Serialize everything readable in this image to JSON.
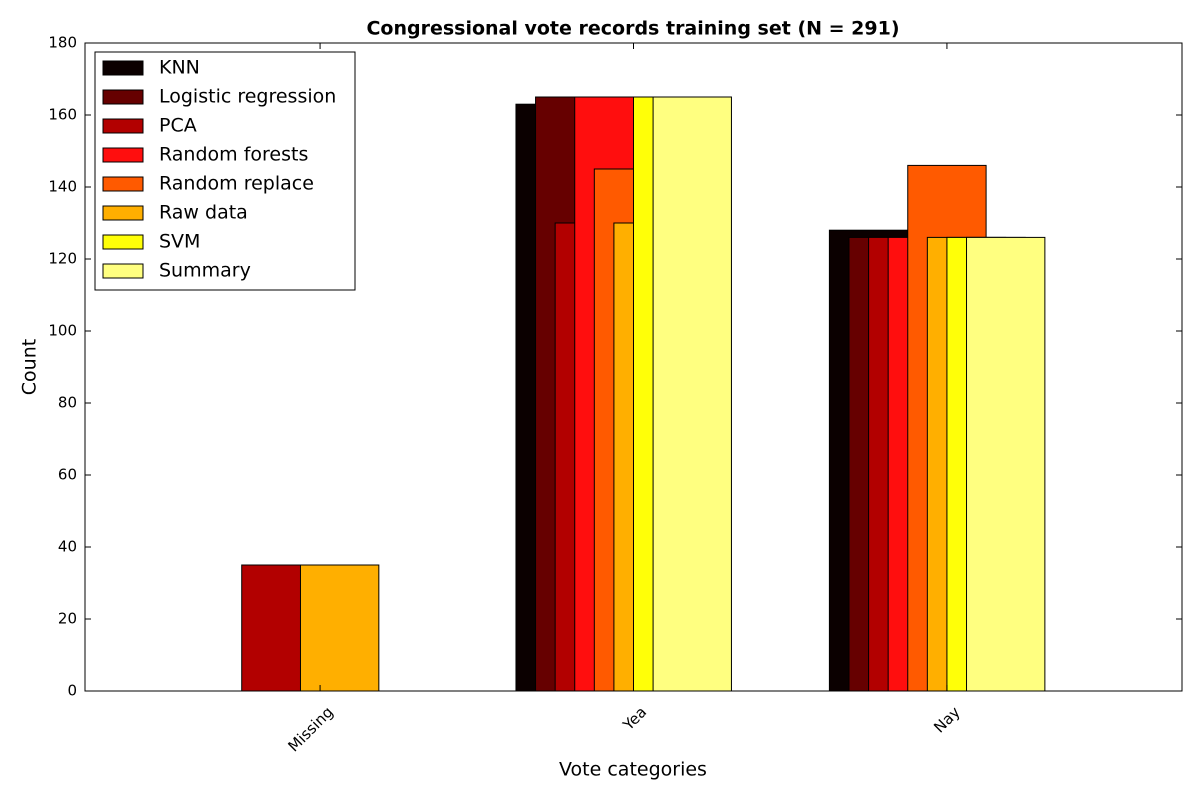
{
  "chart_data": {
    "type": "bar",
    "title": "Congressional vote records training set (N = 291)",
    "xlabel": "Vote categories",
    "ylabel": "Count",
    "categories": [
      "Missing",
      "Yea",
      "Nay"
    ],
    "series": [
      {
        "name": "KNN",
        "color": "#0b0000",
        "values": [
          0,
          163,
          128
        ]
      },
      {
        "name": "Logistic regression",
        "color": "#660000",
        "values": [
          0,
          165,
          126
        ]
      },
      {
        "name": "PCA",
        "color": "#b20000",
        "values": [
          35,
          130,
          126
        ]
      },
      {
        "name": "Random forests",
        "color": "#ff0e0e",
        "values": [
          0,
          165,
          126
        ]
      },
      {
        "name": "Random replace",
        "color": "#ff5a00",
        "values": [
          0,
          145,
          146
        ]
      },
      {
        "name": "Raw data",
        "color": "#ffaf00",
        "values": [
          35,
          130,
          126
        ]
      },
      {
        "name": "SVM",
        "color": "#ffff08",
        "values": [
          0,
          165,
          126
        ]
      },
      {
        "name": "Summary",
        "color": "#ffff80",
        "values": [
          0,
          165,
          126
        ]
      }
    ],
    "ylim": [
      0,
      180
    ],
    "yticks": [
      0,
      20,
      40,
      60,
      80,
      100,
      120,
      140,
      160,
      180
    ],
    "legend": "upper left"
  }
}
